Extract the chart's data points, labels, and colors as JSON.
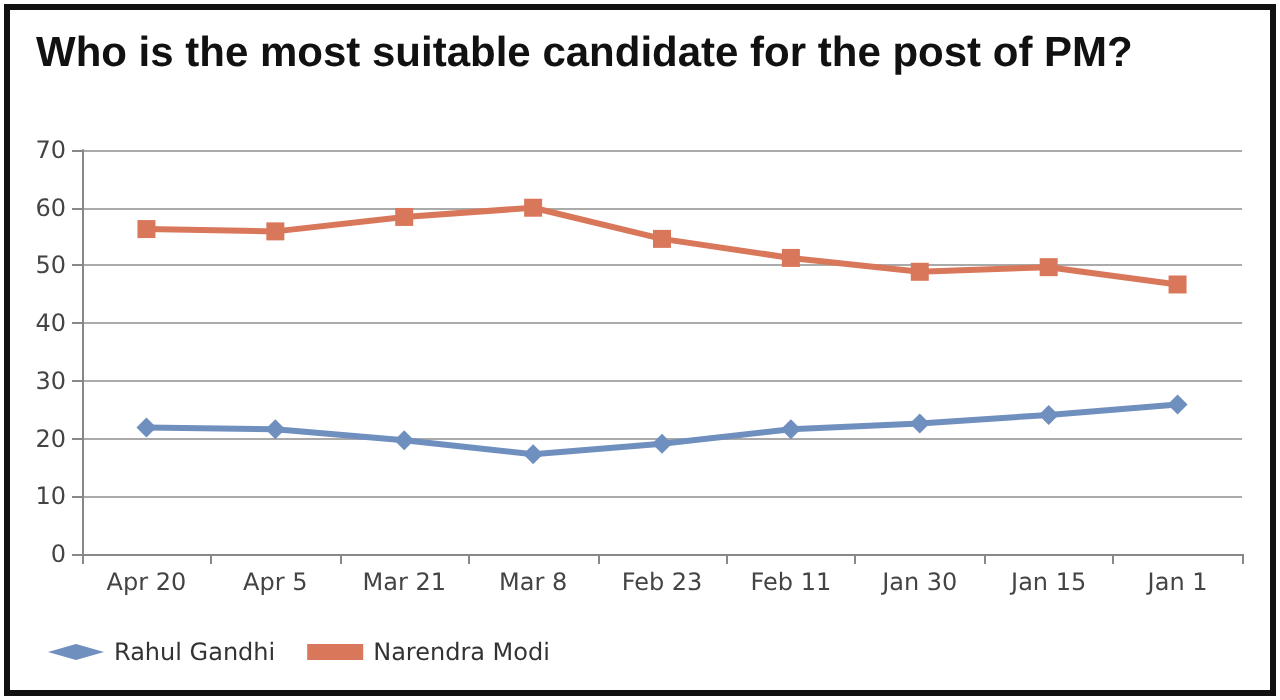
{
  "chart_data": {
    "type": "line",
    "title": "Who is the most suitable candidate for the post of PM?",
    "categories": [
      "Apr 20",
      "Apr 5",
      "Mar 21",
      "Mar 8",
      "Feb 23",
      "Feb 11",
      "Jan 30",
      "Jan 15",
      "Jan 1"
    ],
    "series": [
      {
        "name": "Rahul Gandhi",
        "color": "#6f8fbf",
        "marker": "diamond",
        "values": [
          21.9,
          21.6,
          19.7,
          17.3,
          19.1,
          21.6,
          22.6,
          24.1,
          25.9
        ]
      },
      {
        "name": "Narendra Modi",
        "color": "#d9775a",
        "marker": "square",
        "values": [
          56.3,
          55.9,
          58.4,
          60,
          54.6,
          51.3,
          48.9,
          49.7,
          46.7
        ]
      }
    ],
    "ylim": [
      0,
      70
    ],
    "yticks": [
      0,
      10,
      20,
      30,
      40,
      50,
      60,
      70
    ],
    "grid": "y",
    "legend": "bottom left",
    "line_style": "solid"
  }
}
